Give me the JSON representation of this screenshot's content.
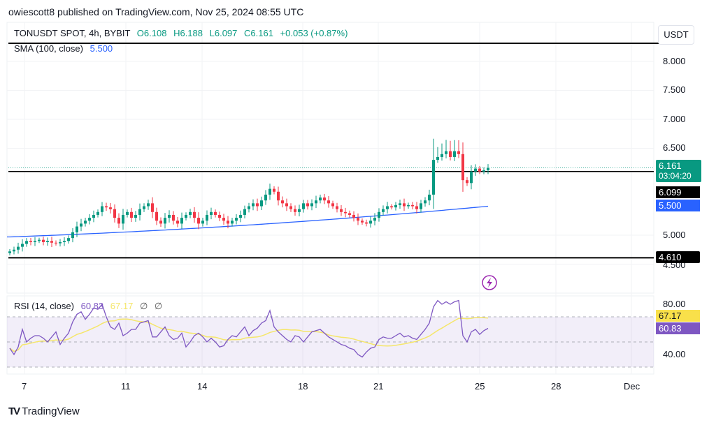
{
  "header": {
    "published": "owiescott8 published on TradingView.com, Nov 25, 2024 08:55 UTC"
  },
  "legend": {
    "symbol": "TONUSDT SPOT, 4h, BYBIT",
    "open": "O6.108",
    "high": "H6.188",
    "low": "L6.097",
    "close": "C6.161",
    "change": "+0.053 (+0.87%)",
    "sma_label": "SMA (100, close)",
    "sma_value": "5.500"
  },
  "rsi_legend": {
    "label": "RSI (14, close)",
    "rsi": "60.83",
    "ma": "67.17",
    "na1": "∅",
    "na2": "∅"
  },
  "axis": {
    "currency": "USDT",
    "price_ticks": [
      "8.000",
      "7.500",
      "7.000",
      "6.500",
      "5.000",
      "4.500"
    ],
    "rsi_ticks": [
      "80.00",
      "40.00"
    ],
    "time_ticks": [
      "7",
      "11",
      "14",
      "18",
      "21",
      "25",
      "28",
      "Dec"
    ]
  },
  "price_labels": {
    "last": "6.161",
    "countdown": "03:04:20",
    "level_mid": "6.099",
    "sma": "5.500",
    "level_low": "4.610",
    "rsi": "60.83",
    "rsi_ma": "67.17"
  },
  "logo": {
    "text": "TradingView"
  },
  "colors": {
    "up": "#089981",
    "down": "#f23645",
    "sma": "#2962ff",
    "rsi": "#7e57c2",
    "rsi_ma": "#f5e66a"
  },
  "chart_data": {
    "type": "candlestick",
    "title": "TONUSDT SPOT, 4h, BYBIT",
    "ylim": [
      4.3,
      8.3
    ],
    "x_start_day": 6.4,
    "candle_hours": 4,
    "horizontal_levels": [
      8.25,
      6.099,
      4.61
    ],
    "closes": [
      4.72,
      4.75,
      4.8,
      4.85,
      4.9,
      4.88,
      4.9,
      4.92,
      4.88,
      4.9,
      4.87,
      4.86,
      4.88,
      4.9,
      4.95,
      5.05,
      5.15,
      5.2,
      5.25,
      5.3,
      5.35,
      5.4,
      5.5,
      5.48,
      5.45,
      5.3,
      5.2,
      5.35,
      5.4,
      5.3,
      5.35,
      5.45,
      5.5,
      5.55,
      5.4,
      5.25,
      5.2,
      5.3,
      5.35,
      5.25,
      5.2,
      5.3,
      5.35,
      5.4,
      5.3,
      5.2,
      5.25,
      5.35,
      5.4,
      5.35,
      5.3,
      5.25,
      5.2,
      5.25,
      5.3,
      5.35,
      5.45,
      5.5,
      5.55,
      5.5,
      5.6,
      5.7,
      5.8,
      5.75,
      5.6,
      5.55,
      5.5,
      5.45,
      5.4,
      5.45,
      5.55,
      5.5,
      5.55,
      5.6,
      5.65,
      5.6,
      5.55,
      5.5,
      5.45,
      5.4,
      5.38,
      5.35,
      5.3,
      5.25,
      5.22,
      5.2,
      5.25,
      5.3,
      5.4,
      5.45,
      5.5,
      5.48,
      5.52,
      5.55,
      5.5,
      5.52,
      5.5,
      5.45,
      5.55,
      5.6,
      5.7,
      6.3,
      6.35,
      6.4,
      6.45,
      6.35,
      6.45,
      6.4,
      5.95,
      5.9,
      6.1,
      6.15,
      6.1,
      6.12,
      6.161
    ],
    "sma_start": 4.97,
    "sma_end": 5.5,
    "rsi": [
      45,
      40,
      46,
      60,
      50,
      53,
      55,
      55,
      53,
      50,
      54,
      58,
      48,
      53,
      57,
      66,
      72,
      74,
      68,
      72,
      77,
      76,
      80,
      70,
      62,
      60,
      65,
      55,
      57,
      60,
      60,
      65,
      66,
      67,
      54,
      54,
      58,
      62,
      55,
      52,
      53,
      57,
      46,
      50,
      55,
      57,
      54,
      50,
      53,
      50,
      46,
      47,
      52,
      55,
      54,
      58,
      62,
      55,
      59,
      61,
      65,
      67,
      75,
      62,
      58,
      55,
      52,
      50,
      55,
      54,
      50,
      54,
      58,
      59,
      60,
      57,
      54,
      52,
      50,
      48,
      47,
      45,
      44,
      40,
      38,
      42,
      45,
      46,
      52,
      54,
      53,
      53,
      55,
      57,
      54,
      55,
      53,
      52,
      56,
      60,
      65,
      78,
      83,
      80,
      82,
      80,
      82,
      83,
      55,
      50,
      58,
      60,
      56,
      59,
      60.83
    ],
    "rsi_bands": [
      70,
      50,
      30
    ],
    "rsi_ylim": [
      30,
      90
    ]
  }
}
